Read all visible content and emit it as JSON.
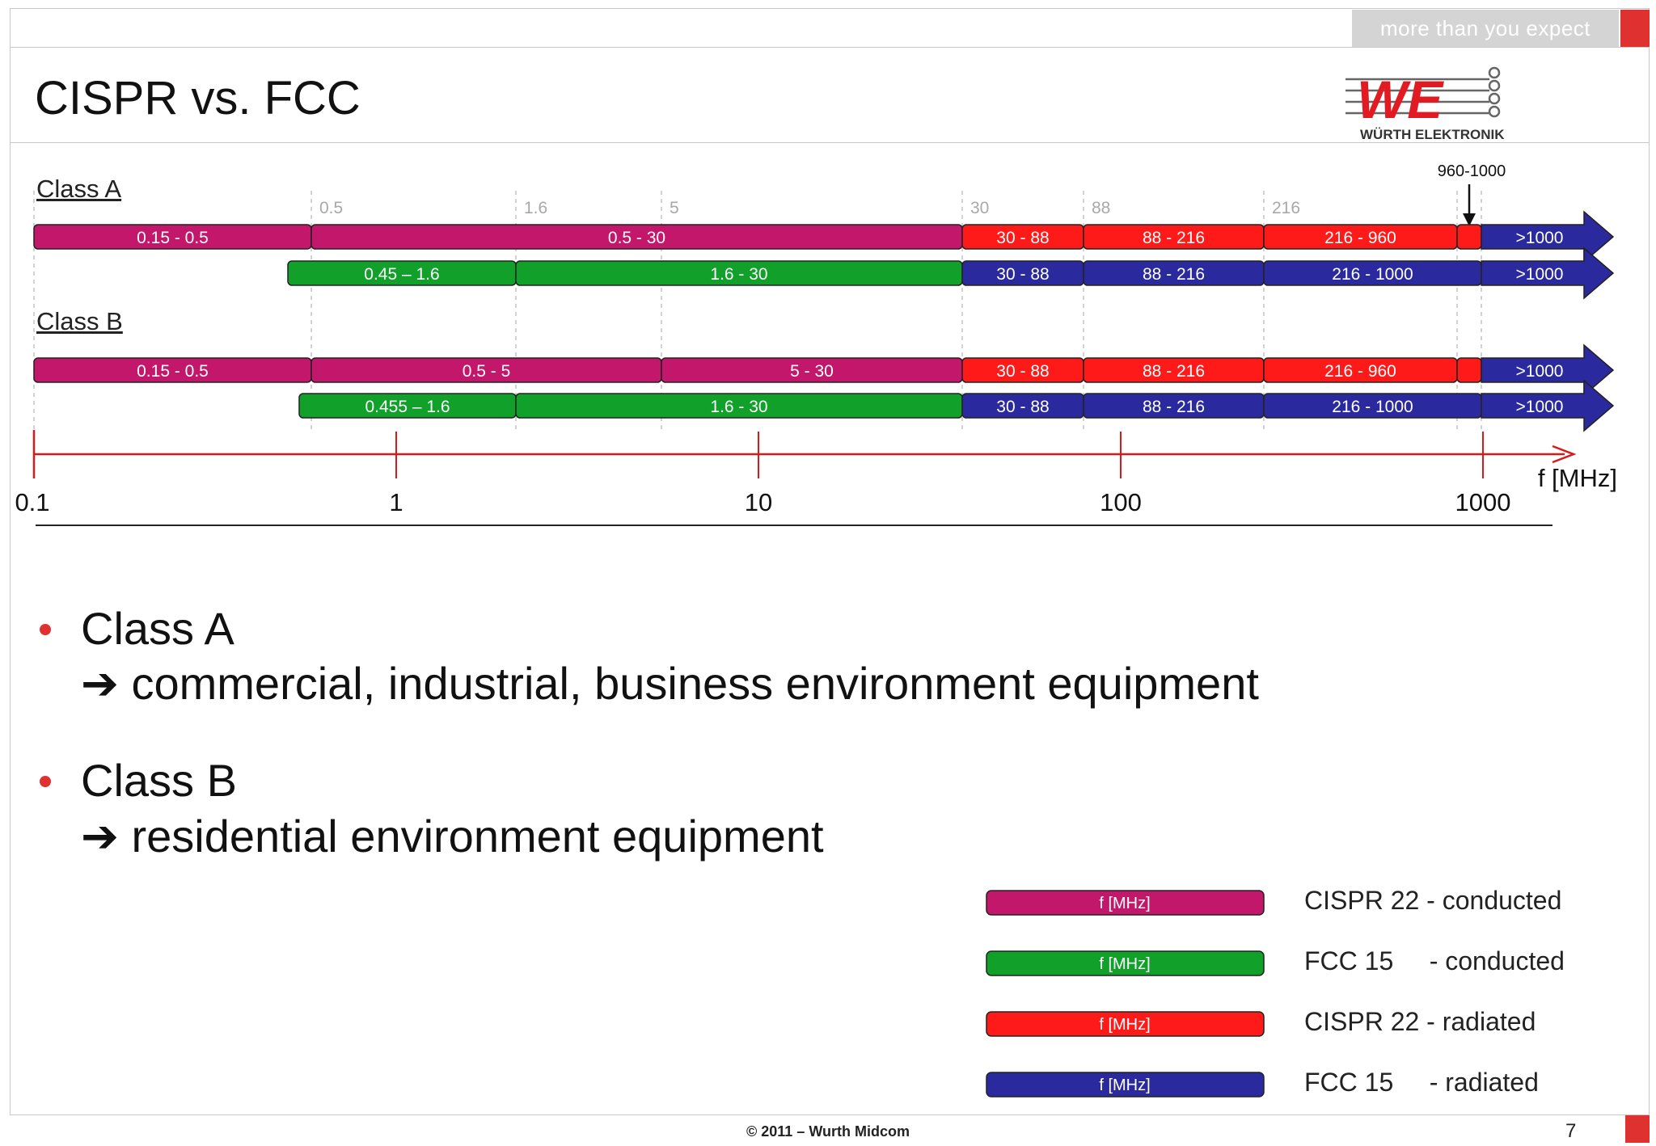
{
  "header": {
    "tagline": "more than you expect",
    "title": "CISPR vs. FCC",
    "logo_text": "WÜRTH ELEKTRONIK"
  },
  "colors": {
    "cispr_conducted": "#c2176b",
    "fcc_conducted": "#11a02a",
    "cispr_radiated": "#ff1a1a",
    "fcc_radiated": "#2a2a9e",
    "accent": "#e03131"
  },
  "chart_data": {
    "type": "frequency-band-diagram",
    "axis": {
      "label": "f [MHz]",
      "scale": "log",
      "range": [
        0.1,
        1000
      ],
      "ticks": [
        "0.1",
        "1",
        "10",
        "100",
        "1000"
      ]
    },
    "marker_labels": [
      "0.5",
      "1.6",
      "5",
      "30",
      "88",
      "216"
    ],
    "annotation": "960-1000",
    "classes": [
      {
        "label": "Class A",
        "rows": [
          {
            "standard": "CISPR 22",
            "bands": [
              {
                "label": "0.15 - 0.5",
                "from": 0.15,
                "to": 0.5,
                "kind": "conducted"
              },
              {
                "label": "0.5 - 30",
                "from": 0.5,
                "to": 30,
                "kind": "conducted"
              },
              {
                "label": "30 - 88",
                "from": 30,
                "to": 88,
                "kind": "radiated"
              },
              {
                "label": "88 - 216",
                "from": 88,
                "to": 216,
                "kind": "radiated"
              },
              {
                "label": "216 - 960",
                "from": 216,
                "to": 960,
                "kind": "radiated"
              },
              {
                "label": "",
                "from": 960,
                "to": 1000,
                "kind": "radiated"
              },
              {
                "label": ">1000",
                "from": 1000,
                "to": null,
                "kind": "fcc-radiated"
              }
            ]
          },
          {
            "standard": "FCC 15",
            "bands": [
              {
                "label": "0.45 – 1.6",
                "from": 0.45,
                "to": 1.6,
                "kind": "conducted"
              },
              {
                "label": "1.6 - 30",
                "from": 1.6,
                "to": 30,
                "kind": "conducted"
              },
              {
                "label": "30 - 88",
                "from": 30,
                "to": 88,
                "kind": "radiated"
              },
              {
                "label": "88 - 216",
                "from": 88,
                "to": 216,
                "kind": "radiated"
              },
              {
                "label": "216 - 1000",
                "from": 216,
                "to": 1000,
                "kind": "radiated"
              },
              {
                "label": ">1000",
                "from": 1000,
                "to": null,
                "kind": "radiated"
              }
            ]
          }
        ]
      },
      {
        "label": "Class B",
        "rows": [
          {
            "standard": "CISPR 22",
            "bands": [
              {
                "label": "0.15 - 0.5",
                "from": 0.15,
                "to": 0.5,
                "kind": "conducted"
              },
              {
                "label": "0.5 - 5",
                "from": 0.5,
                "to": 5,
                "kind": "conducted"
              },
              {
                "label": "5 - 30",
                "from": 5,
                "to": 30,
                "kind": "conducted"
              },
              {
                "label": "30 - 88",
                "from": 30,
                "to": 88,
                "kind": "radiated"
              },
              {
                "label": "88 - 216",
                "from": 88,
                "to": 216,
                "kind": "radiated"
              },
              {
                "label": "216 - 960",
                "from": 216,
                "to": 960,
                "kind": "radiated"
              },
              {
                "label": "",
                "from": 960,
                "to": 1000,
                "kind": "radiated"
              },
              {
                "label": ">1000",
                "from": 1000,
                "to": null,
                "kind": "fcc-radiated"
              }
            ]
          },
          {
            "standard": "FCC 15",
            "bands": [
              {
                "label": "0.455 – 1.6",
                "from": 0.455,
                "to": 1.6,
                "kind": "conducted"
              },
              {
                "label": "1.6 - 30",
                "from": 1.6,
                "to": 30,
                "kind": "conducted"
              },
              {
                "label": "30 - 88",
                "from": 30,
                "to": 88,
                "kind": "radiated"
              },
              {
                "label": "88 - 216",
                "from": 88,
                "to": 216,
                "kind": "radiated"
              },
              {
                "label": "216 - 1000",
                "from": 216,
                "to": 1000,
                "kind": "radiated"
              },
              {
                "label": ">1000",
                "from": 1000,
                "to": null,
                "kind": "radiated"
              }
            ]
          }
        ]
      }
    ]
  },
  "bullets": [
    {
      "title": "Class A",
      "detail": "commercial, industrial, business environment equipment"
    },
    {
      "title": "Class B",
      "detail": "residential environment equipment"
    }
  ],
  "legend": {
    "swatch_text": "f [MHz]",
    "items": [
      {
        "label": "CISPR 22 - conducted",
        "color": "#c2176b"
      },
      {
        "label": "FCC 15     - conducted",
        "color": "#11a02a"
      },
      {
        "label": "CISPR 22 - radiated",
        "color": "#ff1a1a"
      },
      {
        "label": "FCC 15     - radiated",
        "color": "#2a2a9e"
      }
    ]
  },
  "footer": {
    "copyright": "© 2011 – Wurth Midcom",
    "page": "7"
  }
}
